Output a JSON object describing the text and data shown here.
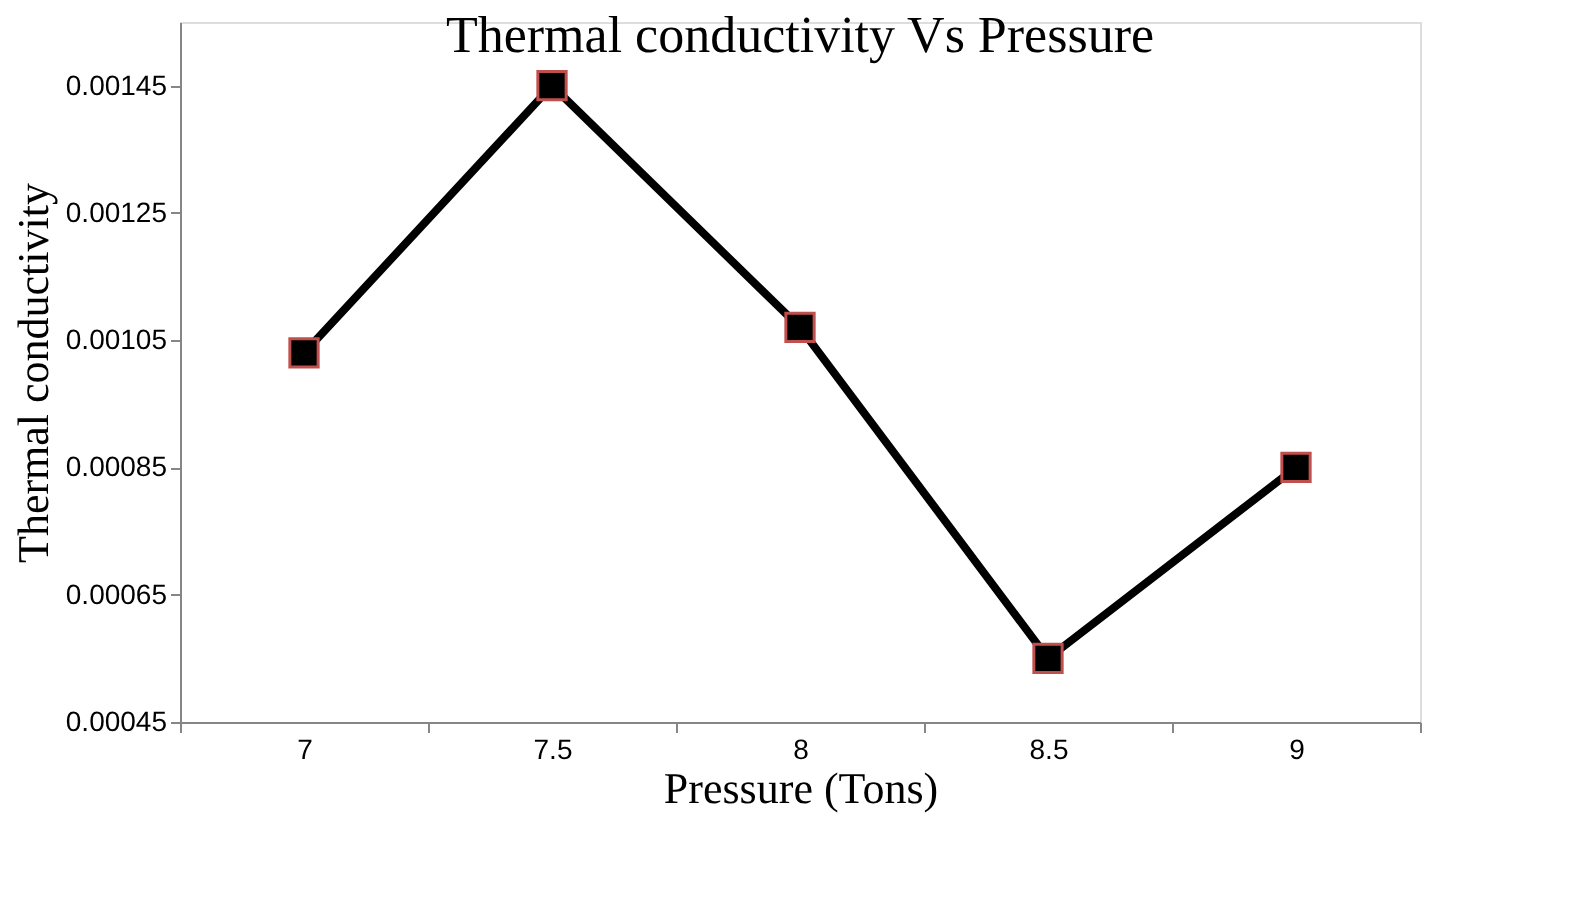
{
  "chart_data": {
    "type": "line",
    "title": "Thermal conductivity Vs Pressure",
    "xlabel": "Pressure (Tons)",
    "ylabel": "Thermal conductivity",
    "categories": [
      "7",
      "7.5",
      "8",
      "8.5",
      "9"
    ],
    "series": [
      {
        "color": "#000000",
        "values": [
          0.00103,
          0.00145,
          0.00107,
          0.00055,
          0.00085
        ]
      }
    ],
    "ylim": [
      0.00045,
      0.00155
    ],
    "yticks": [
      0.00045,
      0.00065,
      0.00085,
      0.00105,
      0.00125,
      0.00145
    ],
    "grid": false,
    "marker": "square",
    "line_style": "solid"
  }
}
